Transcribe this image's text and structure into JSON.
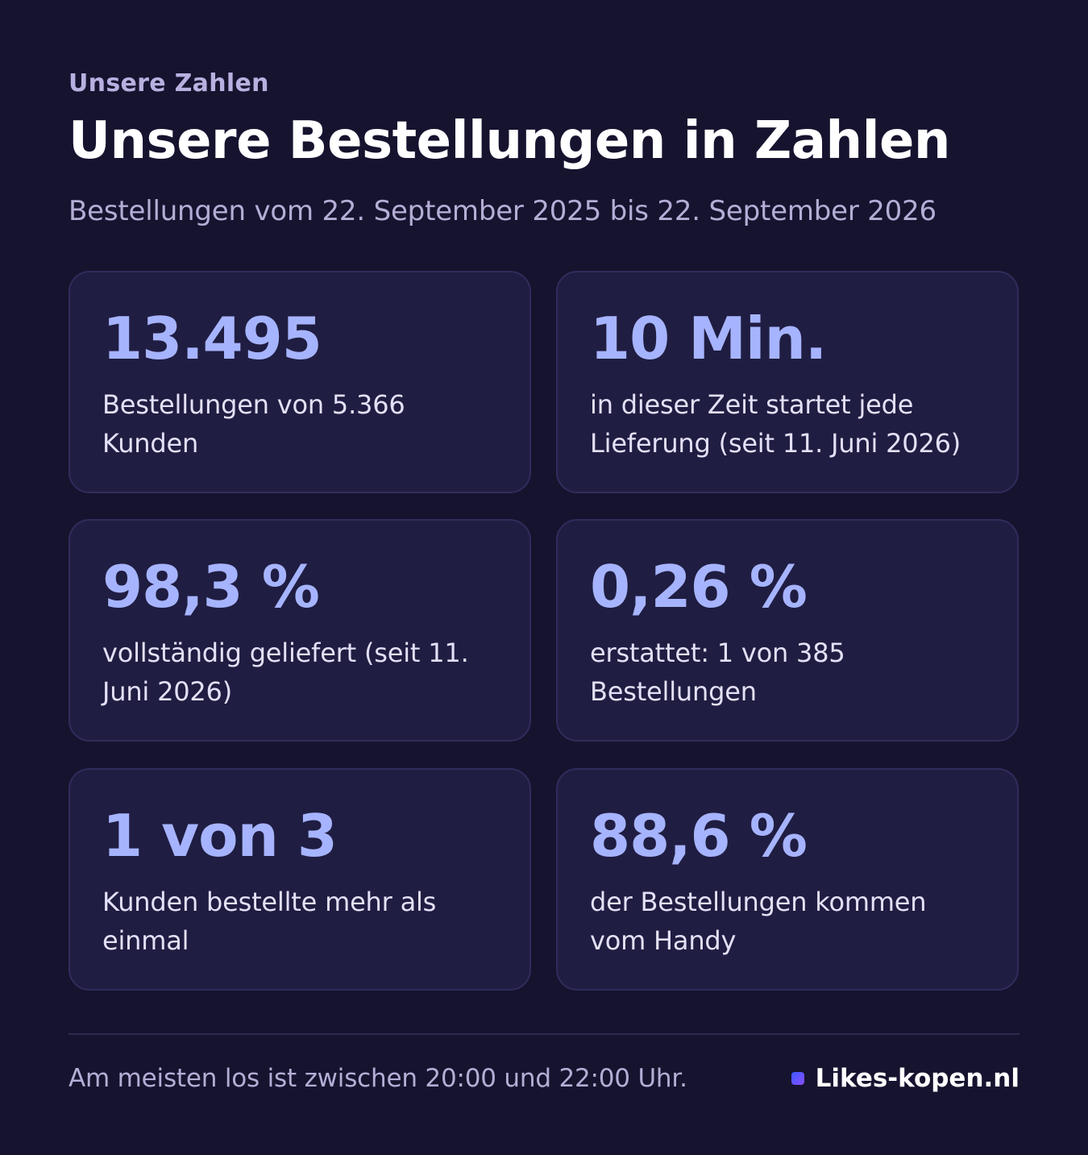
{
  "header": {
    "eyebrow": "Unsere Zahlen",
    "title": "Unsere Bestellungen in Zahlen",
    "subtitle": "Bestellungen vom 22. September 2025 bis 22. September 2026"
  },
  "stats": [
    {
      "value": "13.495",
      "description": "Bestellungen von 5.366 Kunden"
    },
    {
      "value": "10 Min.",
      "description": "in dieser Zeit startet jede Lieferung (seit 11. Juni 2026)"
    },
    {
      "value": "98,3 %",
      "description": "vollständig geliefert (seit 11. Juni 2026)"
    },
    {
      "value": "0,26 %",
      "description": "erstattet: 1 von 385 Bestellungen"
    },
    {
      "value": "1 von 3",
      "description": "Kunden bestellte mehr als einmal"
    },
    {
      "value": "88,6 %",
      "description": "der Bestellungen kommen vom Handy"
    }
  ],
  "footer": {
    "note": "Am meisten los ist zwischen 20:00 und 22:00 Uhr.",
    "brand_icon": "square-dot-icon",
    "brand": "Likes-kopen.nl"
  },
  "colors": {
    "background": "#16132f",
    "card": "#201d42",
    "accent": "#a6b4ff"
  }
}
